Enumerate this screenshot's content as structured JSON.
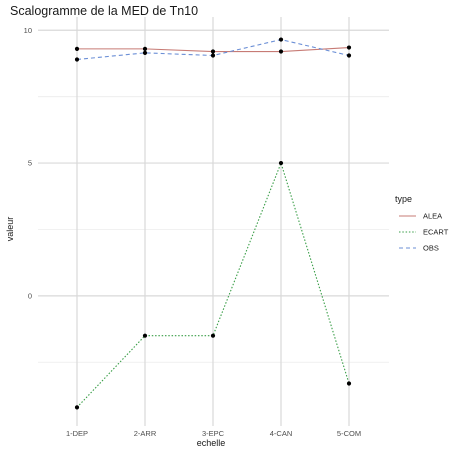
{
  "chart_data": {
    "type": "line",
    "title": "Scalogramme de la MED de Tn10",
    "xlabel": "echelle",
    "ylabel": "valeur",
    "categories": [
      "1-DEP",
      "2-ARR",
      "3-EPC",
      "4-CAN",
      "5-COM"
    ],
    "y_ticks": [
      "10",
      "5",
      "0"
    ],
    "y_tick_values": [
      10,
      5,
      0
    ],
    "ylim": [
      -4.9,
      10.5
    ],
    "grid": true,
    "legend_title": "type",
    "legend_position": "right",
    "series": [
      {
        "name": "ALEA",
        "color": "#c77b75",
        "dash": "solid",
        "values": [
          9.3,
          9.3,
          9.2,
          9.2,
          9.35
        ]
      },
      {
        "name": "ECART",
        "color": "#3a9e48",
        "dash": "dotted",
        "values": [
          -4.2,
          -1.5,
          -1.5,
          5.0,
          -3.3
        ]
      },
      {
        "name": "OBS",
        "color": "#6b8fd6",
        "dash": "dashed",
        "values": [
          8.9,
          9.15,
          9.05,
          9.65,
          9.05
        ]
      }
    ]
  }
}
